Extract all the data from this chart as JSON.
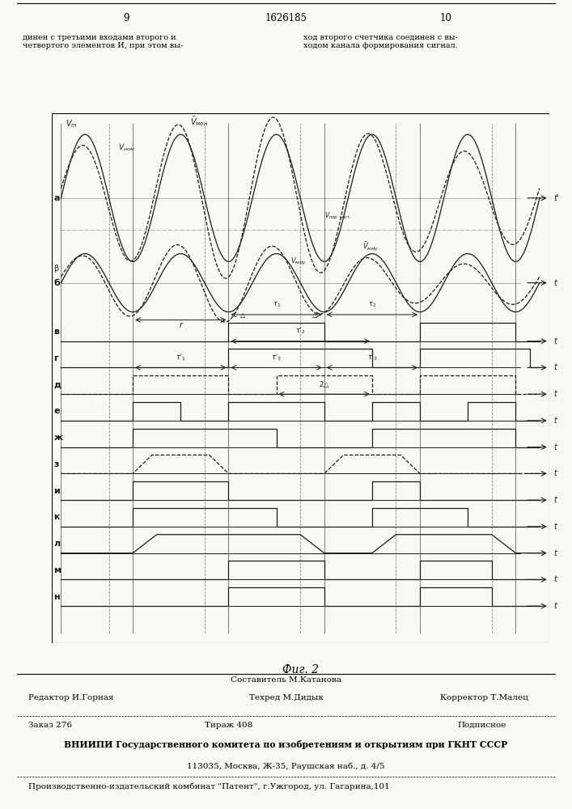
{
  "title_page_num_left": "9",
  "title_patent": "1626185",
  "title_page_num_right": "10",
  "text_left": "динен с третьими входами второго и\nчетвертого элементов И, при этом вы-",
  "text_right": "ход второго счетчика соединен с вы-\nходом канала формирования сигнал.",
  "fig_label": "Фиг. 2",
  "footer_line1_left": "Редактор И.Горная",
  "footer_line1_center": "Составитель М.Катанова\nТехред М.Дидык",
  "footer_line1_right": "Корректор Т.Малец",
  "footer_line2_1": "Заказ 276",
  "footer_line2_2": "Тираж 408",
  "footer_line2_3": "Подписное",
  "footer_line3": "ВНИИПИ Государственного комитета по изобретениям и открытиям при ГКНТ СССР",
  "footer_line4": "113035, Москва, Ж-35, Раушская наб., д. 4/5",
  "footer_line5": "Производственно-издательский комбинат \"Патент\", г.Ужгород, ул. Гагарина,101",
  "bg_color": "#f8f8f4",
  "line_color": "#1a1a1a"
}
